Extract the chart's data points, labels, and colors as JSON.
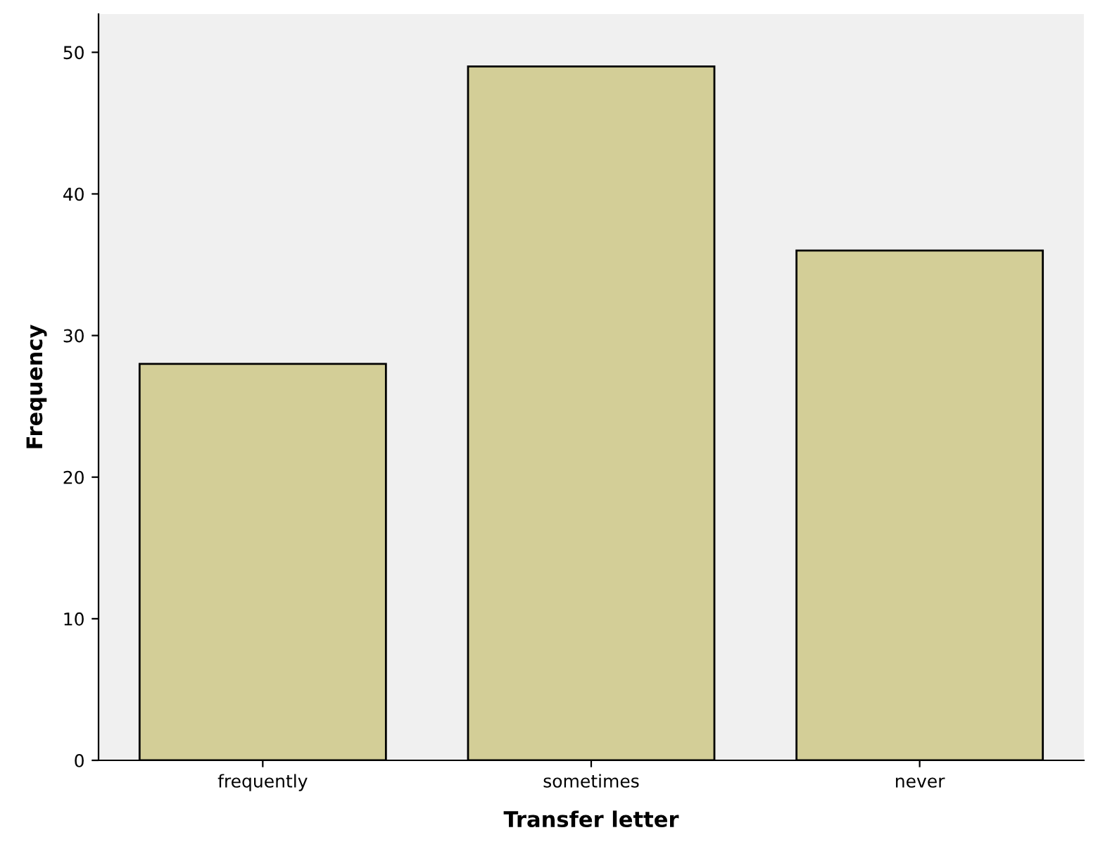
{
  "chart_data": {
    "type": "bar",
    "xlabel": "Transfer letter",
    "ylabel": "Frequency",
    "categories": [
      "frequently",
      "sometimes",
      "never"
    ],
    "values": [
      28,
      49,
      36
    ],
    "color": "#d3ce97",
    "ylim": [
      0,
      52.7
    ],
    "yticks": [
      0,
      10,
      20,
      30,
      40,
      50
    ],
    "grid": false
  }
}
